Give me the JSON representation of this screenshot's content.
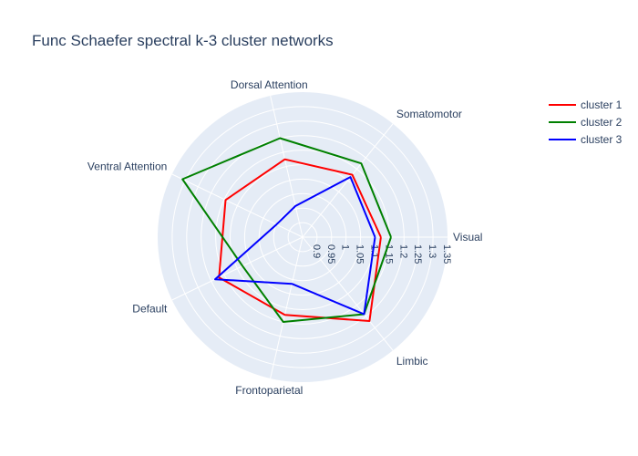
{
  "chart_data": {
    "type": "radar",
    "title": "Func Schaefer spectral k-3 cluster networks",
    "categories": [
      "Visual",
      "Somatomotor",
      "Dorsal Attention",
      "Ventral Attention",
      "Default",
      "Frontoparietal",
      "Limbic"
    ],
    "radial_range": [
      0.85,
      1.35
    ],
    "radial_ticks": [
      0.9,
      0.95,
      1,
      1.05,
      1.1,
      1.15,
      1.2,
      1.25,
      1.3,
      1.35
    ],
    "radial_tick_labels": [
      "0.9",
      "0.95",
      "1",
      "1.05",
      "1.1",
      "1.15",
      "1.2",
      "1.25",
      "1.3",
      "1.35"
    ],
    "series": [
      {
        "name": "cluster 1",
        "color": "#ff0000",
        "values": [
          1.12,
          1.125,
          1.125,
          1.145,
          1.17,
          1.125,
          1.22
        ]
      },
      {
        "name": "cluster 2",
        "color": "#008000",
        "values": [
          1.155,
          1.175,
          1.2,
          1.31,
          1.08,
          1.15,
          1.19
        ]
      },
      {
        "name": "cluster 3",
        "color": "#0000ff",
        "values": [
          1.1,
          1.115,
          0.96,
          0.95,
          1.185,
          1.015,
          1.19
        ]
      }
    ],
    "legend_position": "top-right",
    "grid": true
  }
}
